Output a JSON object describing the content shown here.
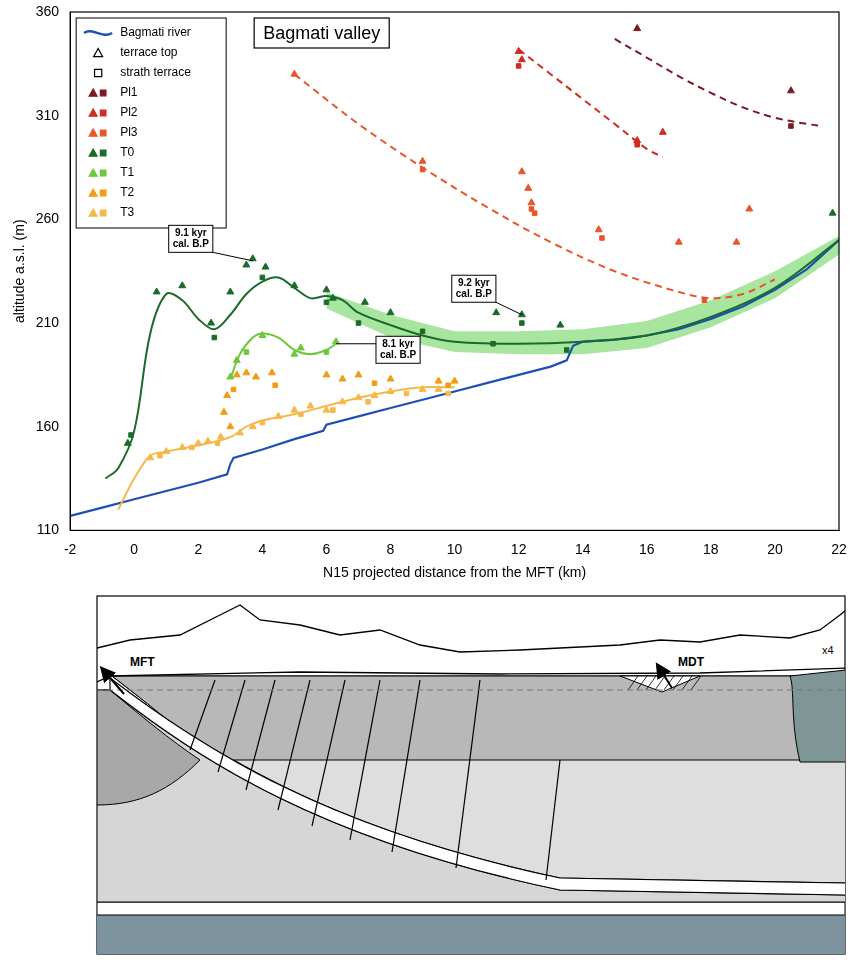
{
  "chart_data": {
    "type": "scatter",
    "title": "Bagmati valley",
    "x_label": "N15 projected distance from the MFT (km)",
    "y_label": "altitude a.s.l. (m)",
    "xlim": [
      -2,
      22
    ],
    "xticks": [
      -2,
      0,
      2,
      4,
      6,
      8,
      10,
      12,
      14,
      16,
      18,
      20,
      22
    ],
    "ylim": [
      110,
      360
    ],
    "yticks": [
      110,
      160,
      210,
      260,
      310,
      360
    ],
    "grid": false,
    "legend": "top-left",
    "markers": {
      "top": {
        "name": "terrace top",
        "marker": "triangle"
      },
      "strath": {
        "name": "strath terrace",
        "marker": "square"
      }
    },
    "series": [
      {
        "name": "Bagmati river",
        "type": "line",
        "color": "#1f4fb4",
        "x": [
          -2,
          -1,
          0,
          1,
          2,
          2.9,
          3,
          3.1,
          4,
          5,
          5.9,
          6,
          7,
          8,
          9,
          10,
          11,
          12,
          13,
          13.5,
          13.7,
          14,
          15,
          16,
          17,
          18,
          19,
          20,
          21,
          22
        ],
        "values": [
          117,
          121,
          125,
          129,
          133,
          137,
          142,
          145,
          149,
          154,
          158,
          161,
          165,
          169,
          173,
          177,
          181,
          185,
          189,
          192,
          199,
          201,
          202,
          204,
          207,
          212,
          218,
          226,
          236,
          250
        ]
      },
      {
        "name": "Pl1",
        "color": "#7a1a28",
        "top": {
          "x": [
            15.7,
            20.5
          ],
          "values": [
            352,
            322
          ]
        },
        "strath": {
          "x": [
            20.5
          ],
          "values": [
            305
          ]
        },
        "fit": {
          "x": [
            15,
            16,
            17,
            18,
            19,
            20,
            21,
            21.5
          ],
          "values": [
            347,
            338,
            329,
            321,
            314,
            309,
            306,
            305
          ],
          "line_style": "dashed"
        }
      },
      {
        "name": "Pl2",
        "color": "#d12a1e",
        "top": {
          "x": [
            12,
            12.1,
            15.7,
            16.5
          ],
          "values": [
            341,
            337,
            298,
            302
          ]
        },
        "strath": {
          "x": [
            12,
            15.7
          ],
          "values": [
            334,
            296
          ]
        },
        "fit": {
          "x": [
            12,
            13,
            14,
            15,
            16,
            16.5
          ],
          "values": [
            342,
            330,
            318,
            306,
            294,
            290
          ],
          "line_style": "dashed"
        }
      },
      {
        "name": "Pl3",
        "color": "#e8552a",
        "top": {
          "x": [
            5,
            9,
            12.1,
            12.3,
            12.4,
            14.5,
            17,
            18.8,
            19.2
          ],
          "values": [
            330,
            288,
            283,
            275,
            268,
            255,
            249,
            249,
            265
          ]
        },
        "strath": {
          "x": [
            9,
            12.4,
            12.5,
            14.6,
            17.8
          ],
          "values": [
            284,
            265,
            263,
            251,
            221
          ]
        },
        "fit": {
          "x": [
            5,
            7,
            9,
            11,
            13,
            15,
            17,
            18,
            19,
            20
          ],
          "values": [
            330,
            306,
            285,
            266,
            249,
            235,
            225,
            222,
            224,
            231
          ],
          "line_style": "dashed"
        }
      },
      {
        "name": "T0",
        "color": "#1a6b2a",
        "top": {
          "x": [
            -0.2,
            0.7,
            1.5,
            2.4,
            3,
            3.5,
            3.7,
            4.1,
            5,
            6,
            6.2,
            7.2,
            8,
            11.3,
            12.1,
            13.3,
            21.8
          ],
          "values": [
            152,
            225,
            228,
            210,
            225,
            238,
            241,
            237,
            228,
            226,
            222,
            220,
            215,
            215,
            214,
            209,
            263
          ]
        },
        "strath": {
          "x": [
            -0.1,
            2.5,
            4,
            6,
            7,
            9,
            11.2,
            12.1,
            13.5
          ],
          "values": [
            156,
            203,
            232,
            220,
            210,
            206,
            200,
            210,
            197
          ]
        },
        "fit": {
          "x": [
            -0.9,
            -0.5,
            0,
            0.5,
            1,
            1.5,
            2,
            2.5,
            3,
            3.5,
            4,
            4.5,
            5,
            5.5,
            6,
            6.5,
            7,
            8,
            9,
            10,
            12,
            14,
            16,
            18,
            20,
            22
          ],
          "values": [
            135,
            140,
            158,
            205,
            224,
            221,
            212,
            207,
            214,
            224,
            230,
            232,
            227,
            222,
            223,
            221,
            215,
            209,
            204,
            201,
            200,
            201,
            204,
            213,
            227,
            250
          ],
          "line_style": "solid"
        },
        "band": {
          "x": [
            6,
            8,
            10,
            12,
            14,
            16,
            18,
            20,
            22
          ],
          "low": [
            217,
            203,
            196,
            195,
            195,
            198,
            208,
            222,
            243
          ],
          "high": [
            225,
            214,
            206,
            206,
            207,
            211,
            221,
            235,
            252
          ],
          "color": "#a8e6a0"
        }
      },
      {
        "name": "T1",
        "color": "#6ec83c",
        "top": {
          "x": [
            3,
            3.2,
            4,
            5,
            5.2,
            6.3
          ],
          "values": [
            184,
            192,
            204,
            195,
            198,
            201
          ]
        },
        "strath": {
          "x": [
            3.5,
            6
          ],
          "values": [
            196,
            196
          ]
        },
        "fit": {
          "x": [
            3,
            3.3,
            3.7,
            4,
            4.5,
            5,
            5.5,
            6,
            6.3
          ],
          "values": [
            183,
            195,
            203,
            205,
            203,
            197,
            195,
            197,
            200
          ],
          "line_style": "solid"
        }
      },
      {
        "name": "T2",
        "color": "#f39c12",
        "top": {
          "x": [
            2.8,
            2.9,
            3,
            3.2,
            3.5,
            3.8,
            4.3,
            6,
            6.5,
            7,
            8,
            9.5,
            10
          ],
          "values": [
            167,
            175,
            160,
            185,
            186,
            184,
            186,
            185,
            183,
            185,
            183,
            182,
            182
          ]
        },
        "strath": {
          "x": [
            3.1,
            4.4,
            7.5,
            9.8
          ],
          "values": [
            178,
            180,
            181,
            180
          ]
        }
      },
      {
        "name": "T3",
        "color": "#f7b84a",
        "top": {
          "x": [
            0.5,
            1,
            1.5,
            2,
            2.3,
            2.7,
            3.3,
            3.7,
            4.5,
            5,
            5.5,
            6,
            6.5,
            7,
            7.5,
            8,
            9,
            9.5
          ],
          "values": [
            145,
            148,
            150,
            152,
            153,
            155,
            157,
            160,
            165,
            168,
            170,
            168,
            172,
            174,
            175,
            177,
            178,
            178
          ]
        },
        "strath": {
          "x": [
            0.8,
            1.8,
            2.6,
            4,
            5.2,
            6.2,
            7.3,
            8.5,
            9.8
          ],
          "values": [
            146,
            150,
            152,
            162,
            166,
            168,
            172,
            176,
            176
          ]
        },
        "fit": {
          "x": [
            -0.5,
            0,
            0.5,
            1,
            2,
            3,
            3.5,
            4,
            5,
            6,
            7,
            8,
            9,
            10
          ],
          "values": [
            120,
            135,
            146,
            148,
            151,
            155,
            160,
            163,
            166,
            170,
            174,
            177,
            179,
            179
          ],
          "line_style": "solid"
        }
      }
    ],
    "annotations": [
      {
        "text": [
          "9.1 kyr",
          "cal. B.P"
        ],
        "x": 3.7,
        "y": 240
      },
      {
        "text": [
          "9.2 kyr",
          "cal. B.P"
        ],
        "x": 12.1,
        "y": 214
      },
      {
        "text": [
          "8.1 kyr",
          "cal. B.P"
        ],
        "x": 6.3,
        "y": 200
      }
    ]
  },
  "diagram": {
    "labels": [
      "MFT",
      "MDT",
      "x4"
    ]
  }
}
